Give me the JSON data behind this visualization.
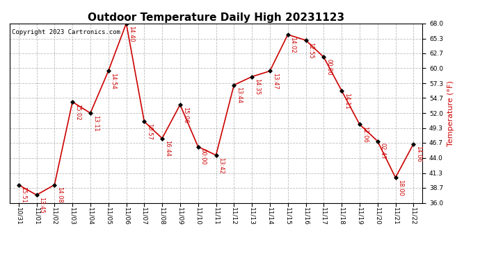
{
  "title": "Outdoor Temperature Daily High 20231123",
  "ylabel": "Temperature (°F)",
  "copyright": "Copyright 2023 Cartronics.com",
  "background_color": "#ffffff",
  "line_color": "#cc0000",
  "label_color": "#cc0000",
  "dates": [
    "10/31",
    "11/01",
    "11/02",
    "11/03",
    "11/04",
    "11/05",
    "11/06",
    "11/07",
    "11/08",
    "11/09",
    "11/10",
    "11/11",
    "11/12",
    "11/13",
    "11/14",
    "11/15",
    "11/16",
    "11/17",
    "11/18",
    "11/19",
    "11/20",
    "11/21",
    "11/22"
  ],
  "temps": [
    39.2,
    37.4,
    39.2,
    54.0,
    52.0,
    59.5,
    68.0,
    50.5,
    47.5,
    53.5,
    46.0,
    44.5,
    57.0,
    58.5,
    59.5,
    66.0,
    65.0,
    62.0,
    56.0,
    50.0,
    47.0,
    40.5,
    46.5
  ],
  "times": [
    "15:51",
    "13:45",
    "14:08",
    "15:02",
    "13:11",
    "14:54",
    "14:40",
    "10:57",
    "16:44",
    "15:06",
    "00:00",
    "13:42",
    "13:44",
    "14:35",
    "13:47",
    "14:02",
    "12:55",
    "00:00",
    "14:11",
    "12:06",
    "02:47",
    "18:00",
    "14:06"
  ],
  "ylim": [
    36.0,
    68.0
  ],
  "yticks": [
    36.0,
    38.7,
    41.3,
    44.0,
    46.7,
    49.3,
    52.0,
    54.7,
    57.3,
    60.0,
    62.7,
    65.3,
    68.0
  ],
  "grid_color": "#bbbbbb",
  "marker_color": "#000000",
  "title_fontsize": 11,
  "tick_fontsize": 6.5,
  "label_fontsize": 6.0,
  "copyright_fontsize": 6.5,
  "ylabel_fontsize": 8,
  "ylabel_color": "#cc0000"
}
